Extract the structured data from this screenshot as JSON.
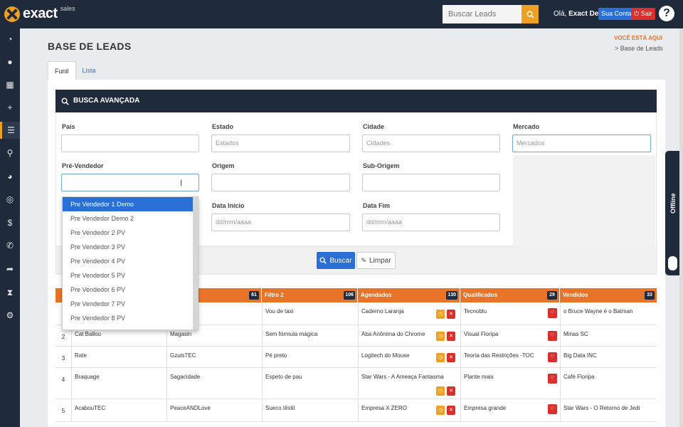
{
  "topbar": {
    "logo_text": "exact",
    "logo_sub": "sales",
    "search_placeholder": "Buscar Leads",
    "greeting_prefix": "Olá,",
    "greeting_name": "Exact Demo",
    "account_label": "Sua Conta",
    "logout_label": "Sair",
    "help_label": "?"
  },
  "sidebar": {
    "items": [
      {
        "icon": "dashboard-icon",
        "glyph": "◔"
      },
      {
        "icon": "user-icon",
        "glyph": "●"
      },
      {
        "icon": "calendar-icon",
        "glyph": "▦"
      },
      {
        "icon": "plus-icon",
        "glyph": "+"
      },
      {
        "icon": "list-icon",
        "glyph": "☰"
      },
      {
        "icon": "pin-icon",
        "glyph": "⚲"
      },
      {
        "icon": "pie-chart-icon",
        "glyph": "◕"
      },
      {
        "icon": "target-icon",
        "glyph": "◎"
      },
      {
        "icon": "dollar-icon",
        "glyph": "$"
      },
      {
        "icon": "phone-icon",
        "glyph": "✆"
      },
      {
        "icon": "share-icon",
        "glyph": "➦"
      },
      {
        "icon": "hourglass-icon",
        "glyph": "⧗"
      },
      {
        "icon": "settings-icon",
        "glyph": "⚙"
      }
    ]
  },
  "header": {
    "title": "BASE DE LEADS",
    "you_are_here": "VOCÊ ESTÁ AQUI",
    "breadcrumb": "> Base de Leads"
  },
  "tabs": [
    {
      "label": "Funil",
      "active": true
    },
    {
      "label": "Lista",
      "active": false
    }
  ],
  "busca": {
    "title": "BUSCA AVANÇADA",
    "pais_label": "País",
    "estado_label": "Estado",
    "estado_placeholder": "Estados",
    "cidade_label": "Cidade",
    "cidade_placeholder": "Cidades",
    "mercado_label": "Mercado",
    "mercado_placeholder": "Mercados",
    "prevendedor_label": "Pré-Vendedor",
    "origem_label": "Origem",
    "suborigem_label": "Sub-Origem",
    "data_inicio_label": "Data Início",
    "data_fim_label": "Data Fim",
    "date_placeholder": "dd/mm/aaaa",
    "buscar_label": "Buscar",
    "limpar_label": "Limpar"
  },
  "dropdown": {
    "options": [
      "Pre Vendedor 1 Demo",
      "Pre Vendedor Demo 2",
      "Pre Vendedor 2 PV",
      "Pre Vendedor 3 PV",
      "Pre Vendedor 4 PV",
      "Pre Vendedor 5 PV",
      "Pre Vendedor 6 PV",
      "Pre Vendedor 7 PV",
      "Pre Vendedor 8 PV"
    ],
    "selected_index": 0
  },
  "funnel": {
    "columns": [
      {
        "label": "",
        "count": "61"
      },
      {
        "label": "Filtro 2",
        "count": "106"
      },
      {
        "label": "Agendados",
        "count": "130"
      },
      {
        "label": "Qualificados",
        "count": "29"
      },
      {
        "label": "Vendidos",
        "count": "33"
      }
    ],
    "rows": [
      {
        "num": "",
        "c0": "",
        "c1": "",
        "c2": "Vou de taxi",
        "c3": "Caderno Laranja",
        "c4": "Tecnoblu",
        "c5": "o Bruce Wayne é o Batman"
      },
      {
        "num": "2",
        "c0": "Cat Ballou",
        "c1": "Magasin",
        "c2": "Sem fórmula mágica",
        "c3": "Aba Anônima do Chrome",
        "c4": "Visual Floripa",
        "c5": "Minas SC"
      },
      {
        "num": "3",
        "c0": "Rate",
        "c1": "GzuisTEC",
        "c2": "Pé preto",
        "c3": "Logitech do Mouse",
        "c4": "Teoria das Restrições -TOC",
        "c5": "Big Data INC"
      },
      {
        "num": "4",
        "c0": "Braquage",
        "c1": "Sagacidade",
        "c2": "Espeto de pau",
        "c3": "Star Wars - A Ameaça Fantasma",
        "c4": "Plante mais",
        "c5": "Café Floripa"
      },
      {
        "num": "5",
        "c0": "AcabouTEC",
        "c1": "PeaceANDLove",
        "c2": "Sueco têxtil",
        "c3": "Empresa X ZERO",
        "c4": "Empresa grande",
        "c5": "Star Wars - O Retorno de Jedi"
      }
    ]
  },
  "offline_label": "Offline",
  "colors": {
    "navy": "#1f2a3a",
    "orange": "#e8742a",
    "blue": "#2a6fd6",
    "red": "#d9302c",
    "gold": "#f0a020"
  }
}
